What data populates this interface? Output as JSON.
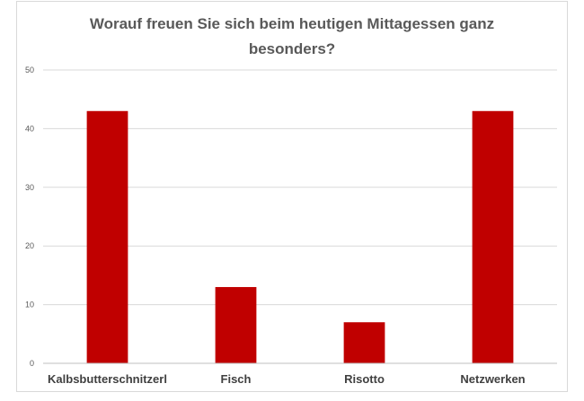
{
  "chart_data": {
    "type": "bar",
    "title": "Worauf freuen Sie sich beim heutigen Mittagessen ganz besonders?",
    "title_lines": [
      "Worauf freuen Sie sich beim heutigen Mittagessen ganz",
      "besonders?"
    ],
    "categories": [
      "Kalbsbutterschnitzerl",
      "Fisch",
      "Risotto",
      "Netzwerken"
    ],
    "values": [
      43,
      13,
      7,
      43
    ],
    "ylim": [
      0,
      50
    ],
    "yticks": [
      0,
      10,
      20,
      30,
      40,
      50
    ],
    "xlabel": "",
    "ylabel": "",
    "grid": true,
    "legend": "none",
    "bar_color": "#c00000"
  }
}
